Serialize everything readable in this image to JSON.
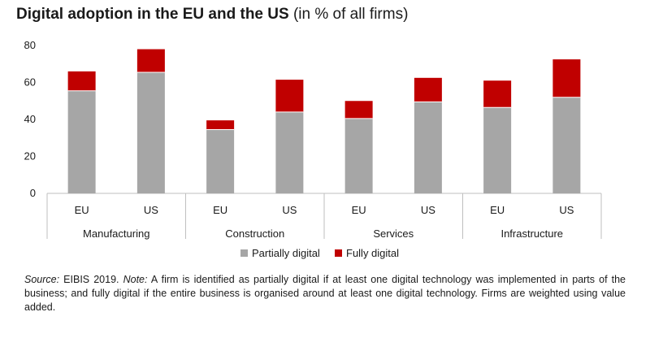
{
  "title": {
    "bold": "Digital adoption in the EU and the US",
    "plain": " (in % of all firms)"
  },
  "chart_data": {
    "type": "bar",
    "stacked": true,
    "title": "Digital adoption in the EU and the US (in % of all firms)",
    "groups": [
      "Manufacturing",
      "Construction",
      "Services",
      "Infrastructure"
    ],
    "categories": [
      "EU",
      "US",
      "EU",
      "US",
      "EU",
      "US",
      "EU",
      "US"
    ],
    "series": [
      {
        "name": "Partially digital",
        "color": "#a6a6a6",
        "values": [
          55.5,
          65.5,
          34.5,
          44,
          40.5,
          49.5,
          46.5,
          52
        ]
      },
      {
        "name": "Fully digital",
        "color": "#c00000",
        "values": [
          10.5,
          12.5,
          5,
          17.5,
          9.5,
          13,
          14.5,
          20.5
        ]
      }
    ],
    "ylim": [
      0,
      80
    ],
    "yticks": [
      0,
      20,
      40,
      60,
      80
    ],
    "xlabel": "",
    "ylabel": "",
    "legend": "bottom-center"
  },
  "note": {
    "source_label": "Source:",
    "source_text": " EIBIS 2019. ",
    "note_label": "Note:",
    "note_text": " A firm is identified as partially digital if at least one digital technology was implemented in parts of the business; and fully digital if the entire business is organised around at least one digital technology. Firms are weighted using value added."
  }
}
